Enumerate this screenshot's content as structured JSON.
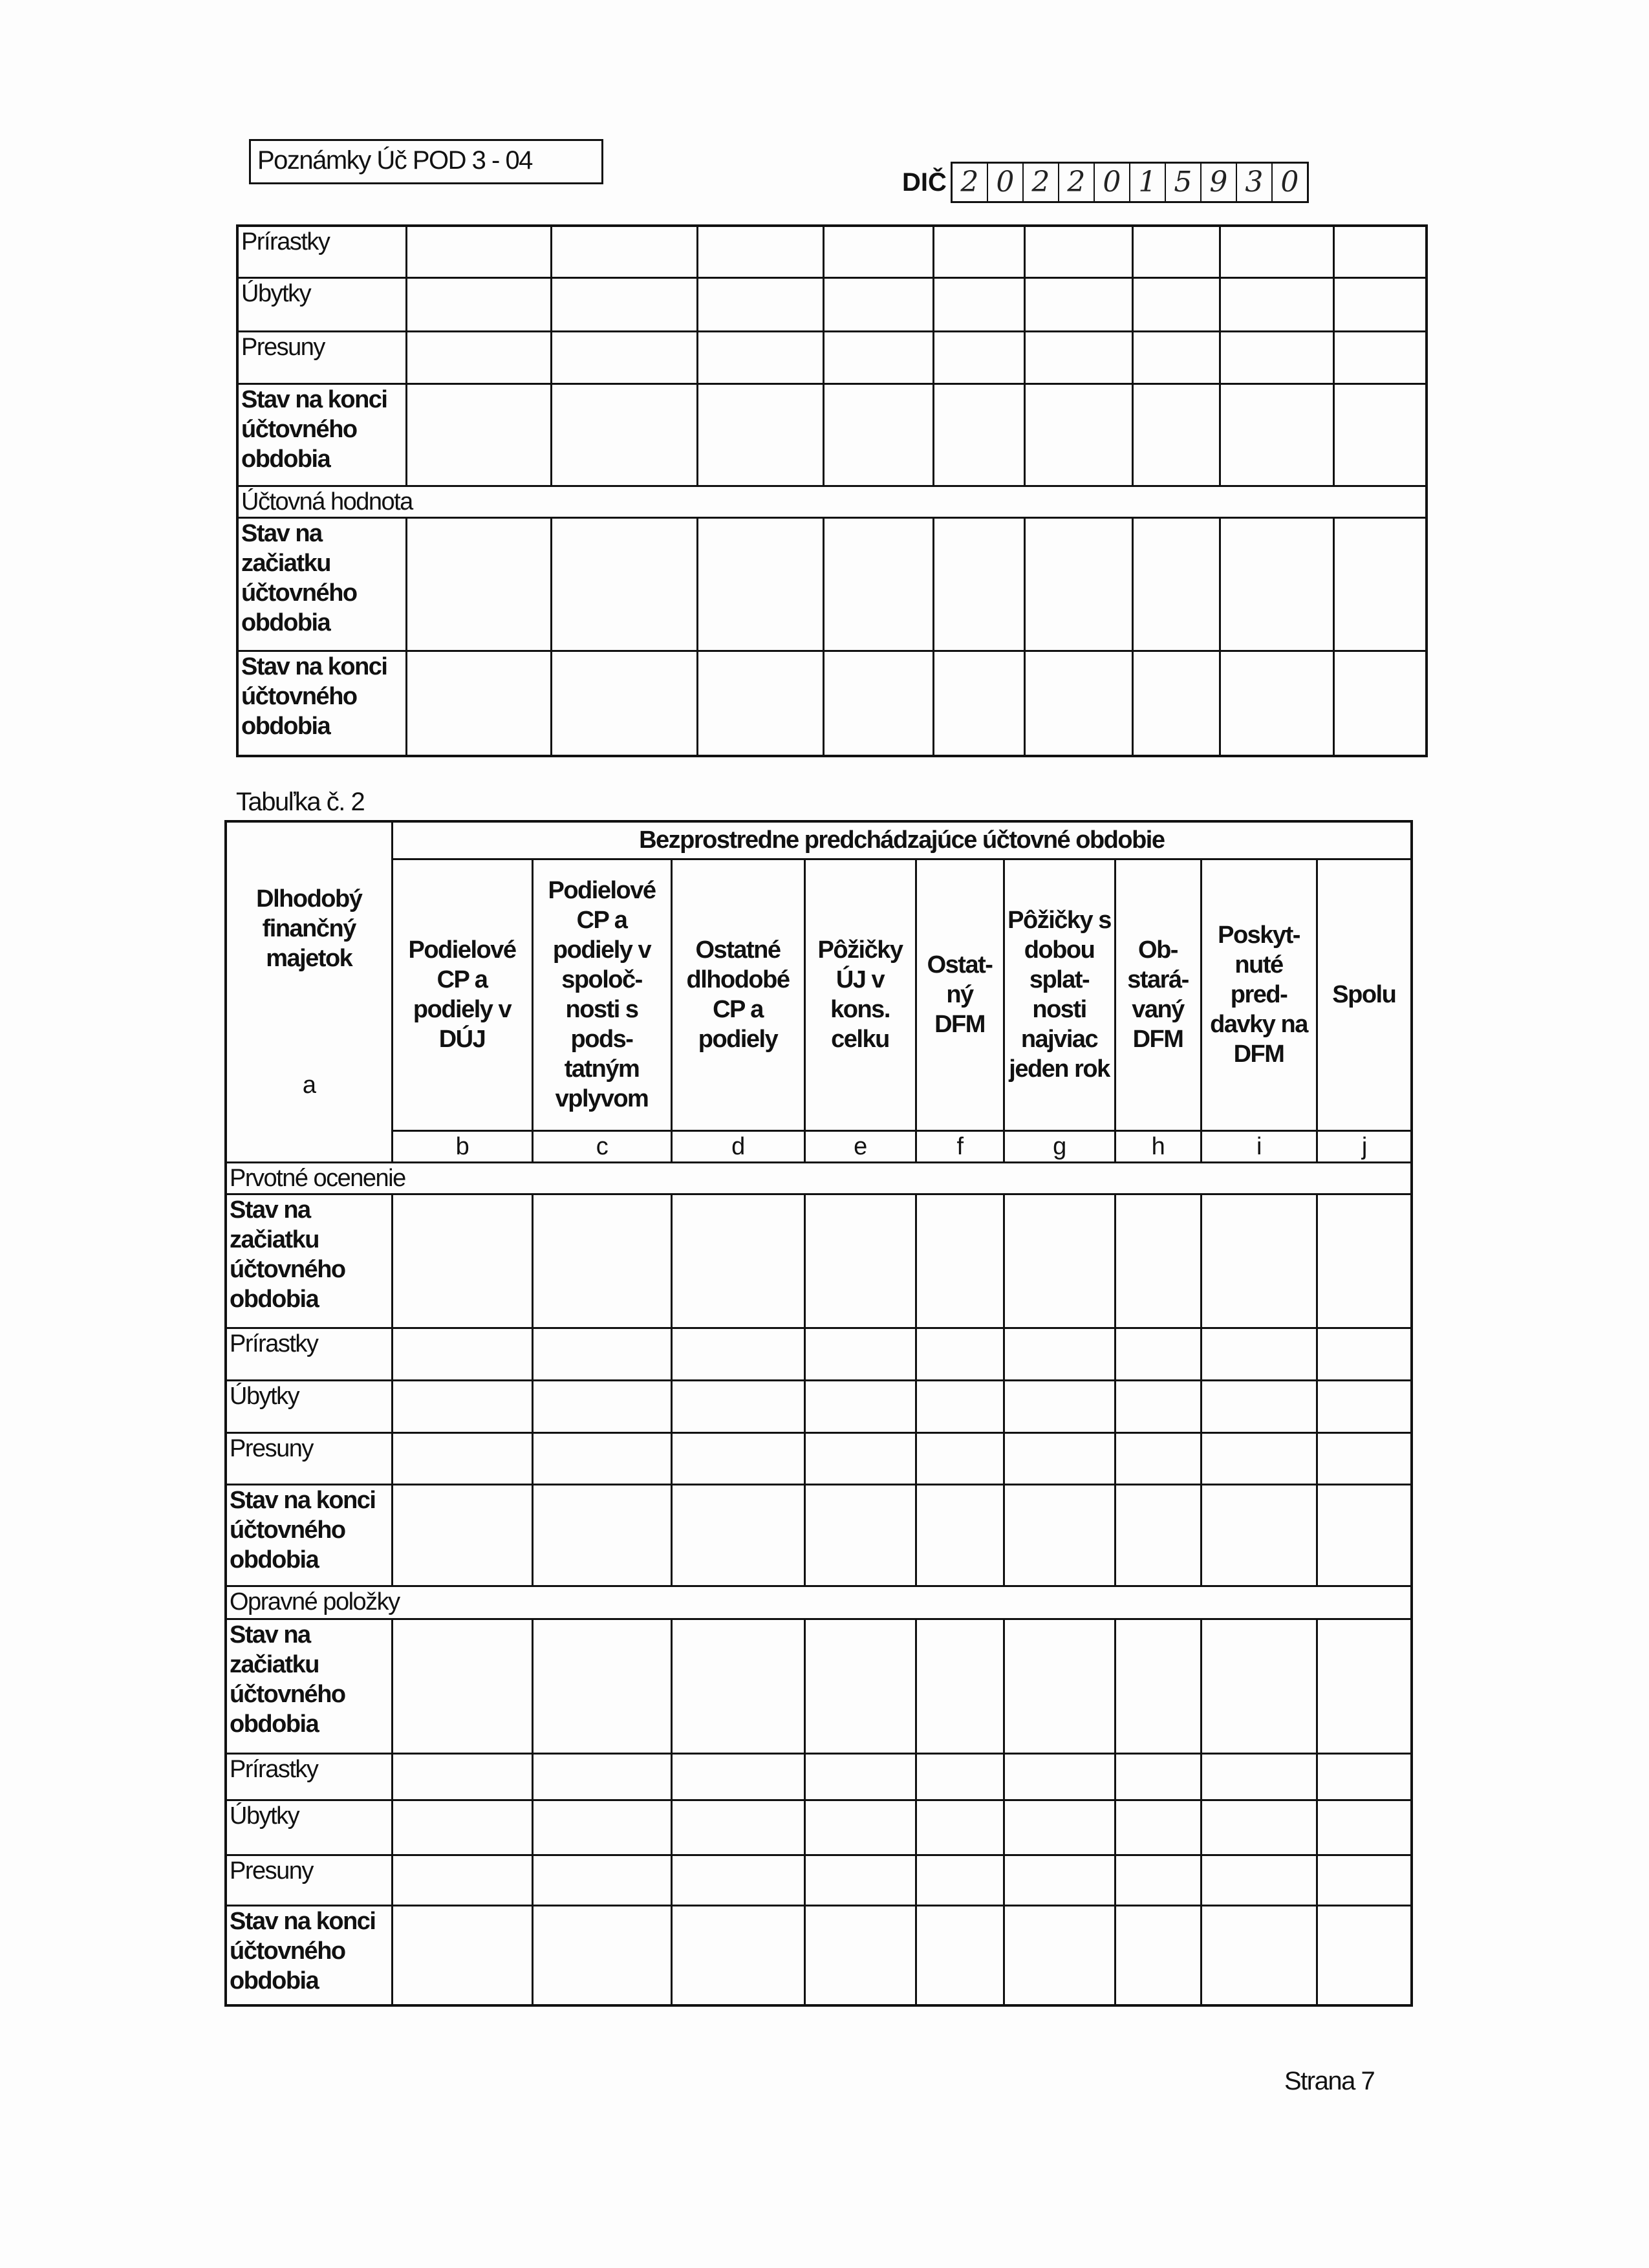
{
  "header": {
    "form_id": "Poznámky Úč POD 3 - 04",
    "dic_label": "DIČ",
    "dic_digits": [
      "2",
      "0",
      "2",
      "2",
      "0",
      "1",
      "5",
      "9",
      "3",
      "0"
    ]
  },
  "table1": {
    "rows": [
      {
        "label": "Prírastky",
        "bold": false
      },
      {
        "label": "Úbytky",
        "bold": false
      },
      {
        "label": "Presuny",
        "bold": false
      },
      {
        "label": "Stav na konci účtovného obdobia",
        "bold": true
      },
      {
        "section": "Účtovná hodnota"
      },
      {
        "label": "Stav na začiatku účtovného obdobia",
        "bold": true
      },
      {
        "label": "Stav na konci účtovného obdobia",
        "bold": true
      }
    ],
    "value_columns": 9
  },
  "table2": {
    "caption": "Tabuľka č. 2",
    "first_column_header": "Dlhodobý finančný majetok",
    "period_header": "Bezprostredne predchádzajúce účtovné obdobie",
    "columns": [
      {
        "header": "Podielové CP a podiely v DÚJ",
        "letter": "b"
      },
      {
        "header": "Podielové CP a podiely v spoloč- nosti s pods- tatným vplyvom",
        "letter": "c"
      },
      {
        "header": "Ostatné dlhodobé CP a podiely",
        "letter": "d"
      },
      {
        "header": "Pôžičky ÚJ v kons. celku",
        "letter": "e"
      },
      {
        "header": "Ostat- ný DFM",
        "letter": "f"
      },
      {
        "header": "Pôžičky s dobou splat- nosti najviac jeden rok",
        "letter": "g"
      },
      {
        "header": "Ob- stará- vaný DFM",
        "letter": "h"
      },
      {
        "header": "Poskyt- nuté pred- davky na DFM",
        "letter": "i"
      },
      {
        "header": "Spolu",
        "letter": "j"
      }
    ],
    "first_column_letter": "a",
    "rows": [
      {
        "section": "Prvotné ocenenie"
      },
      {
        "label": "Stav na začiatku účtovného obdobia",
        "bold": true
      },
      {
        "label": "Prírastky",
        "bold": false
      },
      {
        "label": "Úbytky",
        "bold": false
      },
      {
        "label": "Presuny",
        "bold": false
      },
      {
        "label": "Stav na konci účtovného obdobia",
        "bold": true
      },
      {
        "section": "Opravné položky"
      },
      {
        "label": "Stav na začiatku účtovného obdobia",
        "bold": true
      },
      {
        "label": "Prírastky",
        "bold": false
      },
      {
        "label": "Úbytky",
        "bold": false
      },
      {
        "label": "Presuny",
        "bold": false
      },
      {
        "label": "Stav na konci účtovného obdobia",
        "bold": true
      }
    ]
  },
  "footer": {
    "page": "Strana 7"
  }
}
